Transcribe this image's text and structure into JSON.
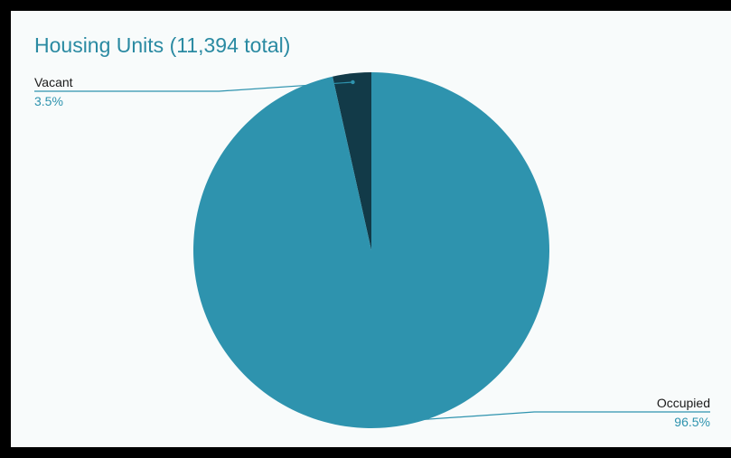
{
  "chart_data": {
    "type": "pie",
    "title": "Housing Units (11,394 total)",
    "slices": [
      {
        "label": "Vacant",
        "value": 3.5,
        "percent_label": "3.5%",
        "color": "#123a48"
      },
      {
        "label": "Occupied",
        "value": 96.5,
        "percent_label": "96.5%",
        "color": "#2e93ae"
      }
    ],
    "start_angle": "top",
    "direction": "counter-clockwise",
    "leader_line_color": "#2e93ae",
    "percent_label_color": "#2e93ae"
  }
}
